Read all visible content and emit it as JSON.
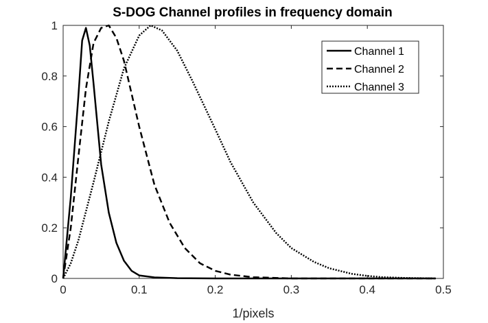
{
  "chart_data": {
    "type": "line",
    "title": "S-DOG Channel profiles in frequency domain",
    "xlabel": "1/pixels",
    "ylabel": "",
    "xlim": [
      0,
      0.5
    ],
    "ylim": [
      0,
      1
    ],
    "xticks": [
      0,
      0.1,
      0.2,
      0.3,
      0.4,
      0.5
    ],
    "xtick_labels": [
      "0",
      "0.1",
      "0.2",
      "0.3",
      "0.4",
      "0.5"
    ],
    "yticks": [
      0,
      0.2,
      0.4,
      0.6,
      0.8,
      1
    ],
    "ytick_labels": [
      "0",
      "0.2",
      "0.4",
      "0.6",
      "0.8",
      "1"
    ],
    "grid": false,
    "legend_position": "top-right",
    "series": [
      {
        "name": "Channel 1",
        "style": "solid",
        "x": [
          0,
          0.01,
          0.02,
          0.025,
          0.03,
          0.035,
          0.04,
          0.05,
          0.06,
          0.07,
          0.08,
          0.09,
          0.1,
          0.12,
          0.15,
          0.2,
          0.3,
          0.4,
          0.49
        ],
        "y": [
          0,
          0.32,
          0.72,
          0.94,
          0.99,
          0.92,
          0.77,
          0.45,
          0.26,
          0.14,
          0.07,
          0.03,
          0.012,
          0.004,
          0.001,
          0.0,
          0.0,
          0.0,
          0.0
        ]
      },
      {
        "name": "Channel 2",
        "style": "dashed",
        "x": [
          0,
          0.01,
          0.02,
          0.03,
          0.04,
          0.05,
          0.06,
          0.07,
          0.08,
          0.09,
          0.1,
          0.12,
          0.14,
          0.16,
          0.18,
          0.2,
          0.22,
          0.25,
          0.3,
          0.4,
          0.49
        ],
        "y": [
          0,
          0.2,
          0.48,
          0.75,
          0.93,
          0.99,
          1.0,
          0.95,
          0.86,
          0.73,
          0.6,
          0.37,
          0.22,
          0.12,
          0.06,
          0.03,
          0.015,
          0.005,
          0.0,
          0.0,
          0.0
        ]
      },
      {
        "name": "Channel 3",
        "style": "dotted",
        "x": [
          0,
          0.01,
          0.02,
          0.04,
          0.06,
          0.08,
          0.1,
          0.115,
          0.13,
          0.15,
          0.17,
          0.2,
          0.22,
          0.25,
          0.28,
          0.3,
          0.33,
          0.35,
          0.38,
          0.4,
          0.42,
          0.45,
          0.49
        ],
        "y": [
          0,
          0.06,
          0.15,
          0.38,
          0.62,
          0.83,
          0.96,
          1.0,
          0.98,
          0.9,
          0.78,
          0.59,
          0.46,
          0.3,
          0.18,
          0.12,
          0.065,
          0.04,
          0.018,
          0.01,
          0.005,
          0.002,
          0.0
        ]
      }
    ]
  }
}
